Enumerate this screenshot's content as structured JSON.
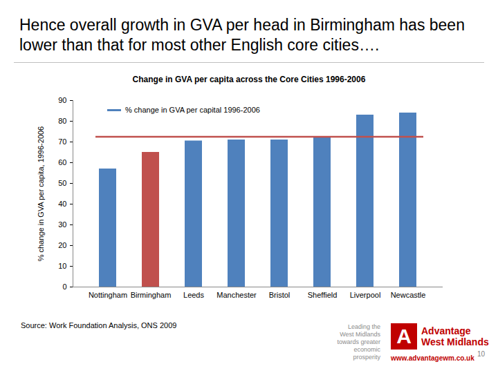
{
  "chart_data": {
    "type": "bar",
    "title": "Change in GVA per capita across the Core Cities 1996-2006",
    "ylabel": "% change in GVA per capita, 1996-2006",
    "categories": [
      "Nottingham",
      "Birmingham",
      "Leeds",
      "Manchester",
      "Bristol",
      "Sheffield",
      "Liverpool",
      "Newcastle"
    ],
    "series": [
      {
        "name": "% change in GVA per capital 1996-2006",
        "color": "#4f81bd",
        "values": [
          57,
          65,
          70.5,
          71,
          71,
          72,
          83,
          84
        ],
        "colors": [
          "#4f81bd",
          "#c0504d",
          "#4f81bd",
          "#4f81bd",
          "#4f81bd",
          "#4f81bd",
          "#4f81bd",
          "#4f81bd"
        ]
      }
    ],
    "reference_line": {
      "value": 72.5,
      "color": "#c0504d"
    },
    "ylim": [
      0,
      90
    ],
    "yticks": [
      0,
      10,
      20,
      30,
      40,
      50,
      60,
      70,
      80,
      90
    ],
    "grid": false,
    "legend": "top-left"
  },
  "slide": {
    "heading": "Hence overall growth in GVA per head in Birmingham has been lower than that for most other English core cities….",
    "source": "Source: Work Foundation Analysis, ONS 2009",
    "logo_tagline": [
      "Leading the",
      "West Midlands",
      "towards greater",
      "economic prosperity"
    ],
    "logo_name": [
      "Advantage",
      "West Midlands"
    ],
    "url": "www.advantagewm.co.uk",
    "page_number": 10
  }
}
